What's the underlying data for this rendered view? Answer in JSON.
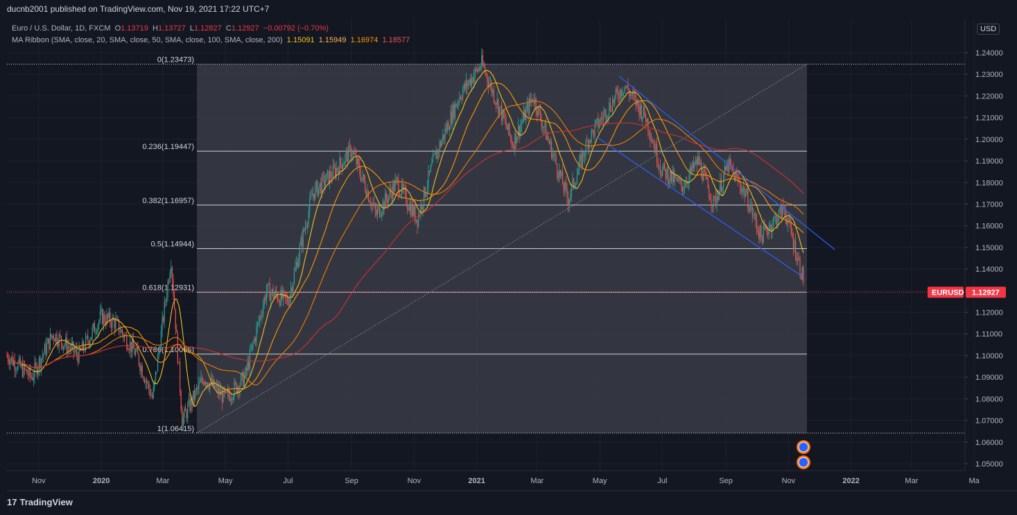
{
  "header": {
    "published": "ducnb2001 published on TradingView.com, Nov 19, 2021 17:22 UTC+7"
  },
  "legend": {
    "symbol": "Euro / U.S. Dollar, 1D, FXCM",
    "open_label": "O",
    "open": "1.13719",
    "high_label": "H",
    "high": "1.13727",
    "low_label": "L",
    "low": "1.12827",
    "close_label": "C",
    "close": "1.12927",
    "change": "−0.00792 (−0.70%)",
    "ma_title": "MA Ribbon (SMA, close, 20, SMA, close, 50, SMA, close, 100, SMA, close, 200)",
    "ma_values": [
      "1.15091",
      "1.15949",
      "1.16974",
      "1.18577"
    ]
  },
  "currency": "USD",
  "footer": {
    "brand": "TradingView",
    "logo": "17"
  },
  "colors": {
    "background": "#131722",
    "up": "#26a69a",
    "down": "#ef5350",
    "ma20": "#f5c21b",
    "ma50": "#ff9800",
    "ma100": "#f57c00",
    "ma200": "#d32f2f",
    "channel": "#2962ff",
    "price_tag": "#f23645"
  },
  "chart_data": {
    "type": "candlestick",
    "symbol": "EURUSD",
    "last_price": "1.12927",
    "y_axis": {
      "range": [
        1.045,
        1.245
      ],
      "ticks": [
        "1.24000",
        "1.23000",
        "1.22000",
        "1.21000",
        "1.20000",
        "1.19000",
        "1.18000",
        "1.17000",
        "1.16000",
        "1.15000",
        "1.14000",
        "1.13000",
        "1.12000",
        "1.11000",
        "1.10000",
        "1.09000",
        "1.08000",
        "1.07000",
        "1.06000",
        "1.05000"
      ]
    },
    "x_axis": {
      "ticks": [
        "Nov",
        "2020",
        "Mar",
        "May",
        "Jul",
        "Sep",
        "Nov",
        "2021",
        "Mar",
        "May",
        "Jul",
        "Sep",
        "Nov",
        "2022",
        "Mar",
        "Ma"
      ]
    },
    "fibonacci": {
      "levels": [
        {
          "label": "0(1.23473)",
          "price": 1.23473
        },
        {
          "label": "0.236(1.19447)",
          "price": 1.19447
        },
        {
          "label": "0.382(1.16957)",
          "price": 1.16957
        },
        {
          "label": "0.5(1.14944)",
          "price": 1.14944
        },
        {
          "label": "0.618(1.12931)",
          "price": 1.12931
        },
        {
          "label": "0.786(1.10066)",
          "price": 1.10066
        },
        {
          "label": "1(1.06415)",
          "price": 1.06415
        }
      ]
    },
    "price_path": [
      {
        "t": "2019-10-01",
        "p": 1.1
      },
      {
        "t": "2019-10-25",
        "p": 1.09
      },
      {
        "t": "2019-11-15",
        "p": 1.11
      },
      {
        "t": "2019-12-10",
        "p": 1.1
      },
      {
        "t": "2020-01-01",
        "p": 1.118
      },
      {
        "t": "2020-01-15",
        "p": 1.115
      },
      {
        "t": "2020-02-05",
        "p": 1.1
      },
      {
        "t": "2020-02-20",
        "p": 1.08
      },
      {
        "t": "2020-03-09",
        "p": 1.145
      },
      {
        "t": "2020-03-20",
        "p": 1.07
      },
      {
        "t": "2020-04-10",
        "p": 1.09
      },
      {
        "t": "2020-05-01",
        "p": 1.08
      },
      {
        "t": "2020-05-20",
        "p": 1.09
      },
      {
        "t": "2020-06-10",
        "p": 1.13
      },
      {
        "t": "2020-07-01",
        "p": 1.125
      },
      {
        "t": "2020-07-25",
        "p": 1.175
      },
      {
        "t": "2020-08-15",
        "p": 1.185
      },
      {
        "t": "2020-09-01",
        "p": 1.195
      },
      {
        "t": "2020-09-25",
        "p": 1.165
      },
      {
        "t": "2020-10-15",
        "p": 1.18
      },
      {
        "t": "2020-11-04",
        "p": 1.163
      },
      {
        "t": "2020-11-20",
        "p": 1.19
      },
      {
        "t": "2020-12-15",
        "p": 1.22
      },
      {
        "t": "2021-01-06",
        "p": 1.235
      },
      {
        "t": "2021-01-25",
        "p": 1.212
      },
      {
        "t": "2021-02-05",
        "p": 1.198
      },
      {
        "t": "2021-02-25",
        "p": 1.22
      },
      {
        "t": "2021-03-15",
        "p": 1.195
      },
      {
        "t": "2021-03-31",
        "p": 1.172
      },
      {
        "t": "2021-04-20",
        "p": 1.2
      },
      {
        "t": "2021-05-10",
        "p": 1.215
      },
      {
        "t": "2021-05-25",
        "p": 1.225
      },
      {
        "t": "2021-06-15",
        "p": 1.21
      },
      {
        "t": "2021-06-30",
        "p": 1.186
      },
      {
        "t": "2021-07-20",
        "p": 1.178
      },
      {
        "t": "2021-08-05",
        "p": 1.19
      },
      {
        "t": "2021-08-20",
        "p": 1.17
      },
      {
        "t": "2021-09-03",
        "p": 1.188
      },
      {
        "t": "2021-09-20",
        "p": 1.175
      },
      {
        "t": "2021-10-05",
        "p": 1.155
      },
      {
        "t": "2021-10-28",
        "p": 1.168
      },
      {
        "t": "2021-11-10",
        "p": 1.145
      },
      {
        "t": "2021-11-19",
        "p": 1.129
      }
    ],
    "moving_averages": [
      {
        "period": 20,
        "value": 1.15091
      },
      {
        "period": 50,
        "value": 1.15949
      },
      {
        "period": 100,
        "value": 1.16974
      },
      {
        "period": 200,
        "value": 1.18577
      }
    ]
  }
}
